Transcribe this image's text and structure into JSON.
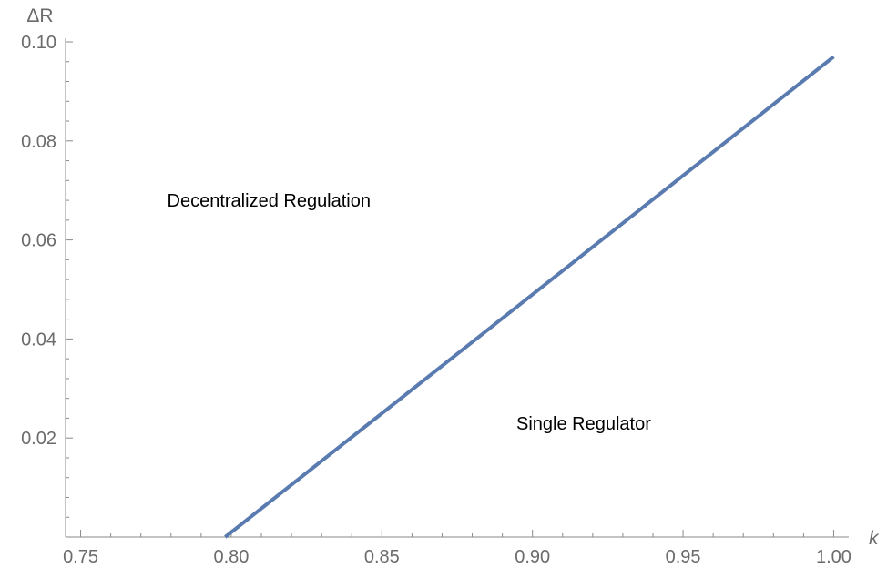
{
  "chart_data": {
    "type": "line",
    "title": "",
    "xlabel": "k",
    "ylabel": "ΔR",
    "xlim": [
      0.745,
      1.005
    ],
    "ylim": [
      0.0,
      0.1
    ],
    "grid": false,
    "x_ticks": [
      0.75,
      0.8,
      0.85,
      0.9,
      0.95,
      1.0
    ],
    "x_tick_labels": [
      "0.75",
      "0.80",
      "0.85",
      "0.90",
      "0.95",
      "1.00"
    ],
    "y_ticks": [
      0.02,
      0.04,
      0.06,
      0.08,
      0.1
    ],
    "y_tick_labels": [
      "0.02",
      "0.04",
      "0.06",
      "0.08",
      "0.10"
    ],
    "series": [
      {
        "x": [
          0.798,
          1.0
        ],
        "y": [
          0.0,
          0.097
        ]
      }
    ],
    "annotations": [
      {
        "text": "Decentralized Regulation",
        "x": 0.8125,
        "y": 0.068
      },
      {
        "text": "Single Regulator",
        "x": 0.917,
        "y": 0.023
      }
    ],
    "colors": {
      "line": "#5a7bb0",
      "axis": "#8a8a8a",
      "text": "#6b6b6b"
    }
  }
}
